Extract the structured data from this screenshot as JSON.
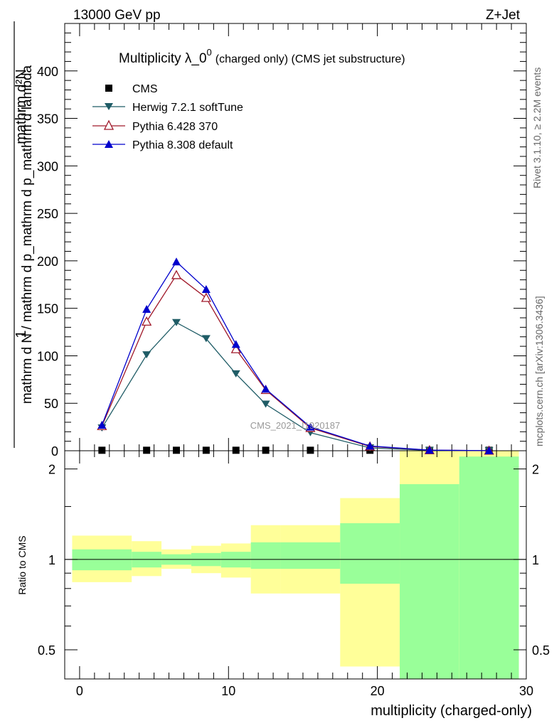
{
  "header": {
    "energy_label": "13000 GeV pp",
    "process_label": "Z+Jet"
  },
  "side_labels": {
    "rivet_version": "Rivet 3.1.10, ≥ 2.2M events",
    "site_reference": "mcplots.cern.ch [arXiv:1306.3436]"
  },
  "chart_data": {
    "type": "line",
    "title_main": "Multiplicity λ_0",
    "title_superscript": "0",
    "title_detail": "(charged only) (CMS jet substructure)",
    "watermark": "CMS_2021_I1920187",
    "xlabel": "multiplicity (charged-only)",
    "ylabel_numerator": "1",
    "ylabel_denominator": "mathrm d N / mathrm d p_mathrm d p_mathrm d lambda",
    "ylabel_numerator_right": "mathrm d²N",
    "ratio_ylabel": "Ratio to CMS",
    "xlim": [
      -1,
      30
    ],
    "ylim": [
      0,
      450
    ],
    "ratio_ylim": [
      0.4,
      2.3
    ],
    "x_ticks": [
      "0",
      "10",
      "20",
      "30"
    ],
    "y_ticks": [
      "0",
      "50",
      "100",
      "150",
      "200",
      "250",
      "300",
      "350",
      "400"
    ],
    "ratio_ticks": [
      "0.5",
      "1",
      "2"
    ],
    "x": [
      1.5,
      4.5,
      6.5,
      8.5,
      10.5,
      12.5,
      15.5,
      19.5,
      23.5,
      27.5
    ],
    "series": [
      {
        "name": "CMS",
        "marker": "square",
        "color": "#000000",
        "values": [
          0.5,
          0.5,
          0.5,
          0.5,
          0.5,
          0.5,
          0.5,
          0.5,
          0.5,
          0.5
        ]
      },
      {
        "name": "Herwig 7.2.1 softTune",
        "marker": "triangle-down",
        "color": "#1f5c66",
        "values": [
          24,
          101,
          135,
          118,
          81,
          49,
          19,
          3,
          0.4,
          0.1
        ]
      },
      {
        "name": "Pythia 6.428 370",
        "marker": "triangle-open",
        "color": "#a0192a",
        "values": [
          26,
          136,
          185,
          161,
          107,
          64,
          24,
          4.5,
          0.6,
          0.1
        ]
      },
      {
        "name": "Pythia 8.308 default",
        "marker": "triangle-up",
        "color": "#0000cc",
        "values": [
          27,
          149,
          199,
          170,
          112,
          65,
          25,
          5,
          0.6,
          0.1
        ]
      }
    ],
    "ratio_bands": {
      "bins": [
        [
          -0.5,
          3.5
        ],
        [
          3.5,
          5.5
        ],
        [
          5.5,
          7.5
        ],
        [
          7.5,
          9.5
        ],
        [
          9.5,
          11.5
        ],
        [
          11.5,
          13.5
        ],
        [
          13.5,
          17.5
        ],
        [
          17.5,
          21.5
        ],
        [
          21.5,
          25.5
        ],
        [
          25.5,
          29.5
        ]
      ],
      "inner_low": [
        0.92,
        0.94,
        0.96,
        0.95,
        0.94,
        0.93,
        0.93,
        0.83,
        0.3,
        0.3
      ],
      "inner_high": [
        1.08,
        1.06,
        1.04,
        1.05,
        1.06,
        1.14,
        1.14,
        1.32,
        1.78,
        2.2
      ],
      "outer_low": [
        0.84,
        0.88,
        0.93,
        0.9,
        0.87,
        0.77,
        0.77,
        0.44,
        0.3,
        0.3
      ],
      "outer_high": [
        1.2,
        1.15,
        1.08,
        1.11,
        1.13,
        1.3,
        1.3,
        1.6,
        2.3,
        2.3
      ],
      "inner_color": "#99ff99",
      "outer_color": "#ffff99"
    }
  }
}
